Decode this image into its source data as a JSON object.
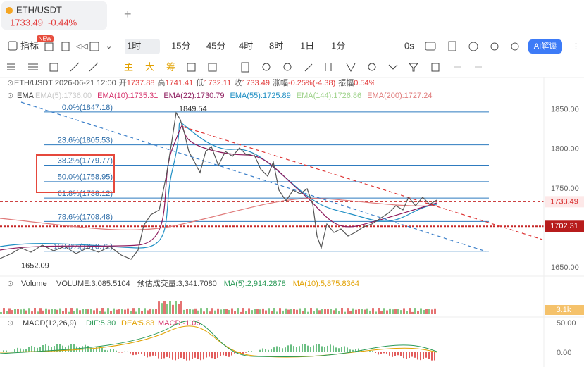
{
  "tab": {
    "symbol": "ETH/USDT",
    "price": "1733.49",
    "change": "-0.44%"
  },
  "new_badge": "NEW",
  "toolbar": {
    "indicator": "指标",
    "intervals": [
      "1时",
      "15分",
      "45分",
      "4时",
      "8时",
      "1日",
      "1分"
    ],
    "timer": "0s",
    "ai": "AI解读"
  },
  "drawing_tools": [
    "主",
    "大",
    "筹"
  ],
  "ohlc": {
    "pair_time": "ETH/USDT 2026-06-21 12:00",
    "open_label": "开",
    "open": "1737.88",
    "high_label": "高",
    "high": "1741.41",
    "low_label": "低",
    "low": "1732.11",
    "close_label": "收",
    "close": "1733.49",
    "change_label": "涨幅",
    "change": "-0.25%(-4.38)",
    "amp_label": "振幅",
    "amp": "0.54%"
  },
  "ema": {
    "label": "EMA",
    "items": [
      {
        "text": "EMA(5):1736.00",
        "color": "#c8c8c8"
      },
      {
        "text": "EMA(10):1735.31",
        "color": "#d6336c"
      },
      {
        "text": "EMA(22):1730.79",
        "color": "#8e1c5e"
      },
      {
        "text": "EMA(55):1725.89",
        "color": "#1f8fc4"
      },
      {
        "text": "EMA(144):1726.86",
        "color": "#9ed28a"
      },
      {
        "text": "EMA(200):1727.24",
        "color": "#e07b7b"
      }
    ]
  },
  "price_axis": {
    "ylim": [
      1641,
      1873
    ],
    "yticks": [
      {
        "value": 1650,
        "label": "1650.00"
      },
      {
        "value": 1700,
        "label": "1700.00"
      },
      {
        "value": 1750,
        "label": "1750.00"
      },
      {
        "value": 1800,
        "label": "1800.00"
      },
      {
        "value": 1850,
        "label": "1850.00"
      }
    ]
  },
  "fib_levels": [
    {
      "value": 1847.18,
      "label": "0.0%(1847.18)"
    },
    {
      "value": 1805.53,
      "label": "23.6%(1805.53)"
    },
    {
      "value": 1779.77,
      "label": "38.2%(1779.77)"
    },
    {
      "value": 1758.95,
      "label": "50.0%(1758.95)"
    },
    {
      "value": 1738.12,
      "label": "61.8%(1738.12)"
    },
    {
      "value": 1708.48,
      "label": "78.6%(1708.48)"
    },
    {
      "value": 1670.71,
      "label": "100.0%(1670.71)"
    }
  ],
  "high_marker": {
    "value": 1849.54,
    "label": "1849.54"
  },
  "low_marker": {
    "value": 1652.09,
    "label": "1652.09"
  },
  "price_tags": [
    {
      "value": 1733.49,
      "label": "1733.49"
    },
    {
      "value": 1702.31,
      "label": "1702.31"
    }
  ],
  "volume": {
    "title": "Volume",
    "items": [
      "VOLUME:3,085.5104",
      "预估成交量:3,341.7080",
      "MA(5):2,914.2878",
      "MA(10):5,875.8364"
    ],
    "axis_label": "3.1k"
  },
  "macd": {
    "title": "MACD(12,26,9)",
    "dif": "DIF:5.30",
    "dea": "DEA:5.83",
    "macd": "MACD:-1.06",
    "axis_top": "50.00",
    "axis_zero": "0.00"
  }
}
